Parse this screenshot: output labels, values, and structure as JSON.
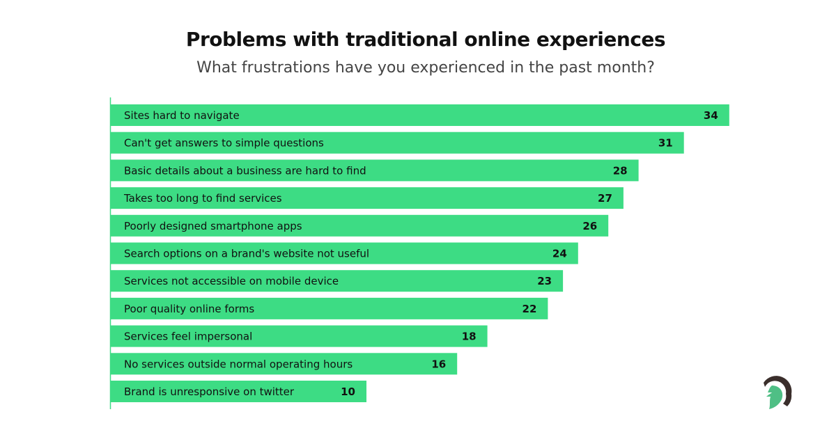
{
  "chart_data": {
    "type": "bar",
    "orientation": "horizontal",
    "title": "Problems with traditional online experiences",
    "subtitle": "What frustrations have you experienced in the past month?",
    "categories": [
      "Sites hard to navigate",
      "Can't get answers to simple questions",
      "Basic details about a business are hard to find",
      "Takes too long to find services",
      "Poorly designed smartphone apps",
      "Search options on a brand's website not useful",
      "Services not accessible on mobile device",
      "Poor quality online forms",
      "Services feel impersonal",
      "No services outside normal operating hours",
      "Brand is unresponsive on twitter"
    ],
    "values": [
      34,
      31,
      28,
      27,
      26,
      24,
      23,
      22,
      18,
      16,
      10
    ],
    "bar_color": "#3ddc84",
    "grid": false,
    "legend": "none"
  },
  "logo": {
    "name": "helmet-leaf-logo",
    "colors": [
      "#3a2e2b",
      "#4fbf85"
    ]
  }
}
